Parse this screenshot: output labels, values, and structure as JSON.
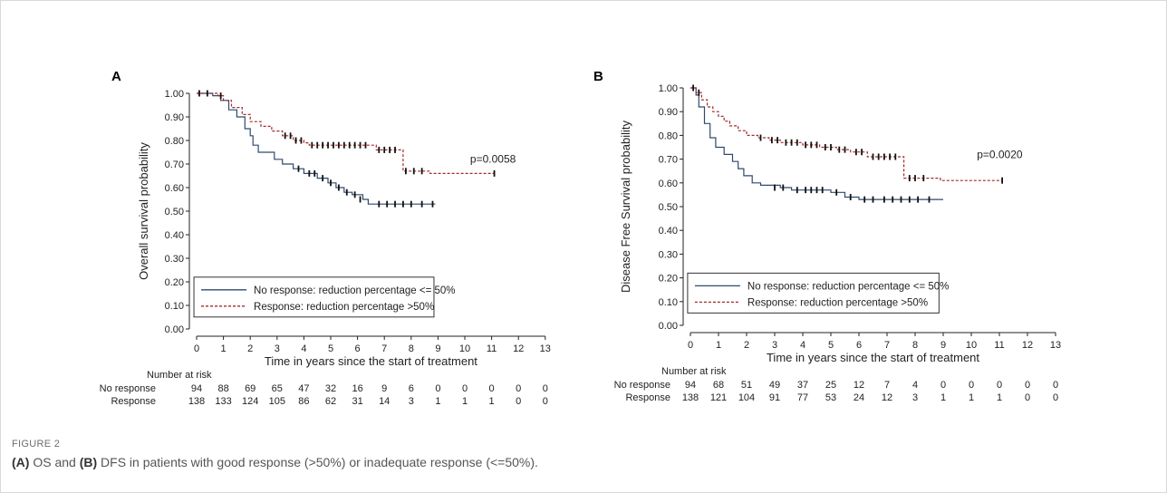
{
  "figure": {
    "label": "FIGURE 2",
    "caption": {
      "part1_label": "(A)",
      "part1_text": " OS and ",
      "part2_label": "(B)",
      "part2_text": " DFS in patients with good response (>50%) or inadequate response (<=50%)."
    }
  },
  "colors": {
    "no_response": "#2e4a6e",
    "response": "#a12a2a",
    "censor": "#111111"
  },
  "chart_data": [
    {
      "panel": "A",
      "type": "line",
      "subtype": "kaplan-meier",
      "ylabel": "Overall survival probability",
      "xlabel": "Time in years since the start of treatment",
      "xlim": [
        0,
        13
      ],
      "ylim": [
        0,
        1
      ],
      "xticks": [
        "0",
        "1",
        "2",
        "3",
        "4",
        "5",
        "6",
        "7",
        "8",
        "9",
        "10",
        "11",
        "12",
        "13"
      ],
      "yticks": [
        "0.00",
        "0.10",
        "0.20",
        "0.30",
        "0.40",
        "0.50",
        "0.60",
        "0.70",
        "0.80",
        "0.90",
        "1.00"
      ],
      "grid": false,
      "legend_position": "bottom-left",
      "annotation": "p=0.0058",
      "series": [
        {
          "name": "No response: reduction percentage <= 50%",
          "style": "solid",
          "steps": [
            [
              0,
              1.0
            ],
            [
              0.6,
              0.99
            ],
            [
              0.9,
              0.97
            ],
            [
              1.2,
              0.93
            ],
            [
              1.5,
              0.9
            ],
            [
              1.8,
              0.85
            ],
            [
              2.0,
              0.82
            ],
            [
              2.1,
              0.78
            ],
            [
              2.3,
              0.75
            ],
            [
              2.9,
              0.72
            ],
            [
              3.2,
              0.7
            ],
            [
              3.6,
              0.68
            ],
            [
              4.0,
              0.66
            ],
            [
              4.5,
              0.64
            ],
            [
              4.9,
              0.62
            ],
            [
              5.2,
              0.6
            ],
            [
              5.5,
              0.58
            ],
            [
              5.8,
              0.57
            ],
            [
              6.2,
              0.55
            ],
            [
              6.4,
              0.53
            ],
            [
              8.9,
              0.53
            ]
          ],
          "censors": [
            [
              3.8,
              0.68
            ],
            [
              4.2,
              0.66
            ],
            [
              4.4,
              0.66
            ],
            [
              4.7,
              0.64
            ],
            [
              5.0,
              0.62
            ],
            [
              5.3,
              0.6
            ],
            [
              5.6,
              0.58
            ],
            [
              5.9,
              0.57
            ],
            [
              6.1,
              0.55
            ],
            [
              6.8,
              0.53
            ],
            [
              7.1,
              0.53
            ],
            [
              7.4,
              0.53
            ],
            [
              7.7,
              0.53
            ],
            [
              8.0,
              0.53
            ],
            [
              8.4,
              0.53
            ],
            [
              8.8,
              0.53
            ]
          ]
        },
        {
          "name": "Response: reduction percentage >50%",
          "style": "dashed",
          "steps": [
            [
              0,
              1.0
            ],
            [
              0.8,
              0.99
            ],
            [
              1.0,
              0.97
            ],
            [
              1.3,
              0.94
            ],
            [
              1.7,
              0.91
            ],
            [
              2.0,
              0.88
            ],
            [
              2.4,
              0.86
            ],
            [
              2.8,
              0.84
            ],
            [
              3.2,
              0.82
            ],
            [
              3.6,
              0.8
            ],
            [
              4.0,
              0.79
            ],
            [
              4.2,
              0.78
            ],
            [
              6.5,
              0.78
            ],
            [
              6.7,
              0.76
            ],
            [
              7.5,
              0.76
            ],
            [
              7.7,
              0.67
            ],
            [
              8.6,
              0.67
            ],
            [
              8.7,
              0.66
            ],
            [
              11.1,
              0.66
            ]
          ],
          "censors": [
            [
              0.1,
              1.0
            ],
            [
              0.4,
              1.0
            ],
            [
              0.9,
              0.99
            ],
            [
              3.3,
              0.82
            ],
            [
              3.5,
              0.82
            ],
            [
              3.7,
              0.8
            ],
            [
              3.9,
              0.8
            ],
            [
              4.3,
              0.78
            ],
            [
              4.5,
              0.78
            ],
            [
              4.7,
              0.78
            ],
            [
              4.9,
              0.78
            ],
            [
              5.1,
              0.78
            ],
            [
              5.3,
              0.78
            ],
            [
              5.5,
              0.78
            ],
            [
              5.7,
              0.78
            ],
            [
              5.9,
              0.78
            ],
            [
              6.1,
              0.78
            ],
            [
              6.3,
              0.78
            ],
            [
              6.8,
              0.76
            ],
            [
              7.0,
              0.76
            ],
            [
              7.2,
              0.76
            ],
            [
              7.4,
              0.76
            ],
            [
              7.8,
              0.67
            ],
            [
              8.1,
              0.67
            ],
            [
              8.4,
              0.67
            ],
            [
              11.1,
              0.66
            ]
          ]
        }
      ],
      "risk_table": {
        "title": "Number at risk",
        "rows": [
          {
            "label": "No response",
            "values": [
              "94",
              "88",
              "69",
              "65",
              "47",
              "32",
              "16",
              "9",
              "6",
              "0",
              "0",
              "0",
              "0",
              "0"
            ]
          },
          {
            "label": "Response",
            "values": [
              "138",
              "133",
              "124",
              "105",
              "86",
              "62",
              "31",
              "14",
              "3",
              "1",
              "1",
              "1",
              "0",
              "0"
            ]
          }
        ]
      }
    },
    {
      "panel": "B",
      "type": "line",
      "subtype": "kaplan-meier",
      "ylabel": "Disease Free Survival probability",
      "xlabel": "Time in years since the start of treatment",
      "xlim": [
        0,
        13
      ],
      "ylim": [
        0,
        1
      ],
      "xticks": [
        "0",
        "1",
        "2",
        "3",
        "4",
        "5",
        "6",
        "7",
        "8",
        "9",
        "10",
        "11",
        "12",
        "13"
      ],
      "yticks": [
        "0.00",
        "0.10",
        "0.20",
        "0.30",
        "0.40",
        "0.50",
        "0.60",
        "0.70",
        "0.80",
        "0.90",
        "1.00"
      ],
      "grid": false,
      "legend_position": "bottom-left",
      "annotation": "p=0.0020",
      "series": [
        {
          "name": "No response: reduction percentage <= 50%",
          "style": "solid",
          "steps": [
            [
              0,
              1.0
            ],
            [
              0.2,
              0.97
            ],
            [
              0.3,
              0.92
            ],
            [
              0.5,
              0.85
            ],
            [
              0.7,
              0.79
            ],
            [
              0.9,
              0.75
            ],
            [
              1.2,
              0.72
            ],
            [
              1.5,
              0.69
            ],
            [
              1.7,
              0.66
            ],
            [
              1.9,
              0.63
            ],
            [
              2.2,
              0.6
            ],
            [
              2.5,
              0.59
            ],
            [
              3.2,
              0.58
            ],
            [
              3.6,
              0.57
            ],
            [
              5.0,
              0.56
            ],
            [
              5.5,
              0.54
            ],
            [
              6.0,
              0.53
            ],
            [
              9.0,
              0.53
            ]
          ],
          "censors": [
            [
              3.0,
              0.58
            ],
            [
              3.3,
              0.58
            ],
            [
              3.8,
              0.57
            ],
            [
              4.1,
              0.57
            ],
            [
              4.3,
              0.57
            ],
            [
              4.5,
              0.57
            ],
            [
              4.7,
              0.57
            ],
            [
              5.2,
              0.56
            ],
            [
              5.7,
              0.54
            ],
            [
              6.2,
              0.53
            ],
            [
              6.5,
              0.53
            ],
            [
              6.9,
              0.53
            ],
            [
              7.2,
              0.53
            ],
            [
              7.5,
              0.53
            ],
            [
              7.8,
              0.53
            ],
            [
              8.1,
              0.53
            ],
            [
              8.5,
              0.53
            ]
          ]
        },
        {
          "name": "Response: reduction percentage >50%",
          "style": "dashed",
          "steps": [
            [
              0,
              1.0
            ],
            [
              0.2,
              0.98
            ],
            [
              0.4,
              0.95
            ],
            [
              0.6,
              0.92
            ],
            [
              0.8,
              0.9
            ],
            [
              1.0,
              0.88
            ],
            [
              1.2,
              0.86
            ],
            [
              1.4,
              0.84
            ],
            [
              1.7,
              0.82
            ],
            [
              2.0,
              0.8
            ],
            [
              2.4,
              0.79
            ],
            [
              2.8,
              0.78
            ],
            [
              3.2,
              0.77
            ],
            [
              4.0,
              0.76
            ],
            [
              4.6,
              0.75
            ],
            [
              5.2,
              0.74
            ],
            [
              5.7,
              0.73
            ],
            [
              6.3,
              0.71
            ],
            [
              7.5,
              0.71
            ],
            [
              7.6,
              0.62
            ],
            [
              8.7,
              0.62
            ],
            [
              8.9,
              0.61
            ],
            [
              11.1,
              0.61
            ]
          ],
          "censors": [
            [
              0.1,
              1.0
            ],
            [
              0.3,
              0.98
            ],
            [
              2.5,
              0.79
            ],
            [
              2.9,
              0.78
            ],
            [
              3.1,
              0.78
            ],
            [
              3.4,
              0.77
            ],
            [
              3.6,
              0.77
            ],
            [
              3.8,
              0.77
            ],
            [
              4.1,
              0.76
            ],
            [
              4.3,
              0.76
            ],
            [
              4.5,
              0.76
            ],
            [
              4.8,
              0.75
            ],
            [
              5.0,
              0.75
            ],
            [
              5.3,
              0.74
            ],
            [
              5.5,
              0.74
            ],
            [
              5.9,
              0.73
            ],
            [
              6.1,
              0.73
            ],
            [
              6.5,
              0.71
            ],
            [
              6.7,
              0.71
            ],
            [
              6.9,
              0.71
            ],
            [
              7.1,
              0.71
            ],
            [
              7.3,
              0.71
            ],
            [
              7.8,
              0.62
            ],
            [
              8.0,
              0.62
            ],
            [
              8.3,
              0.62
            ],
            [
              11.1,
              0.61
            ]
          ]
        }
      ],
      "risk_table": {
        "title": "Number at risk",
        "rows": [
          {
            "label": "No response",
            "values": [
              "94",
              "68",
              "51",
              "49",
              "37",
              "25",
              "12",
              "7",
              "4",
              "0",
              "0",
              "0",
              "0",
              "0"
            ]
          },
          {
            "label": "Response",
            "values": [
              "138",
              "121",
              "104",
              "91",
              "77",
              "53",
              "24",
              "12",
              "3",
              "1",
              "1",
              "1",
              "0",
              "0"
            ]
          }
        ]
      }
    }
  ]
}
